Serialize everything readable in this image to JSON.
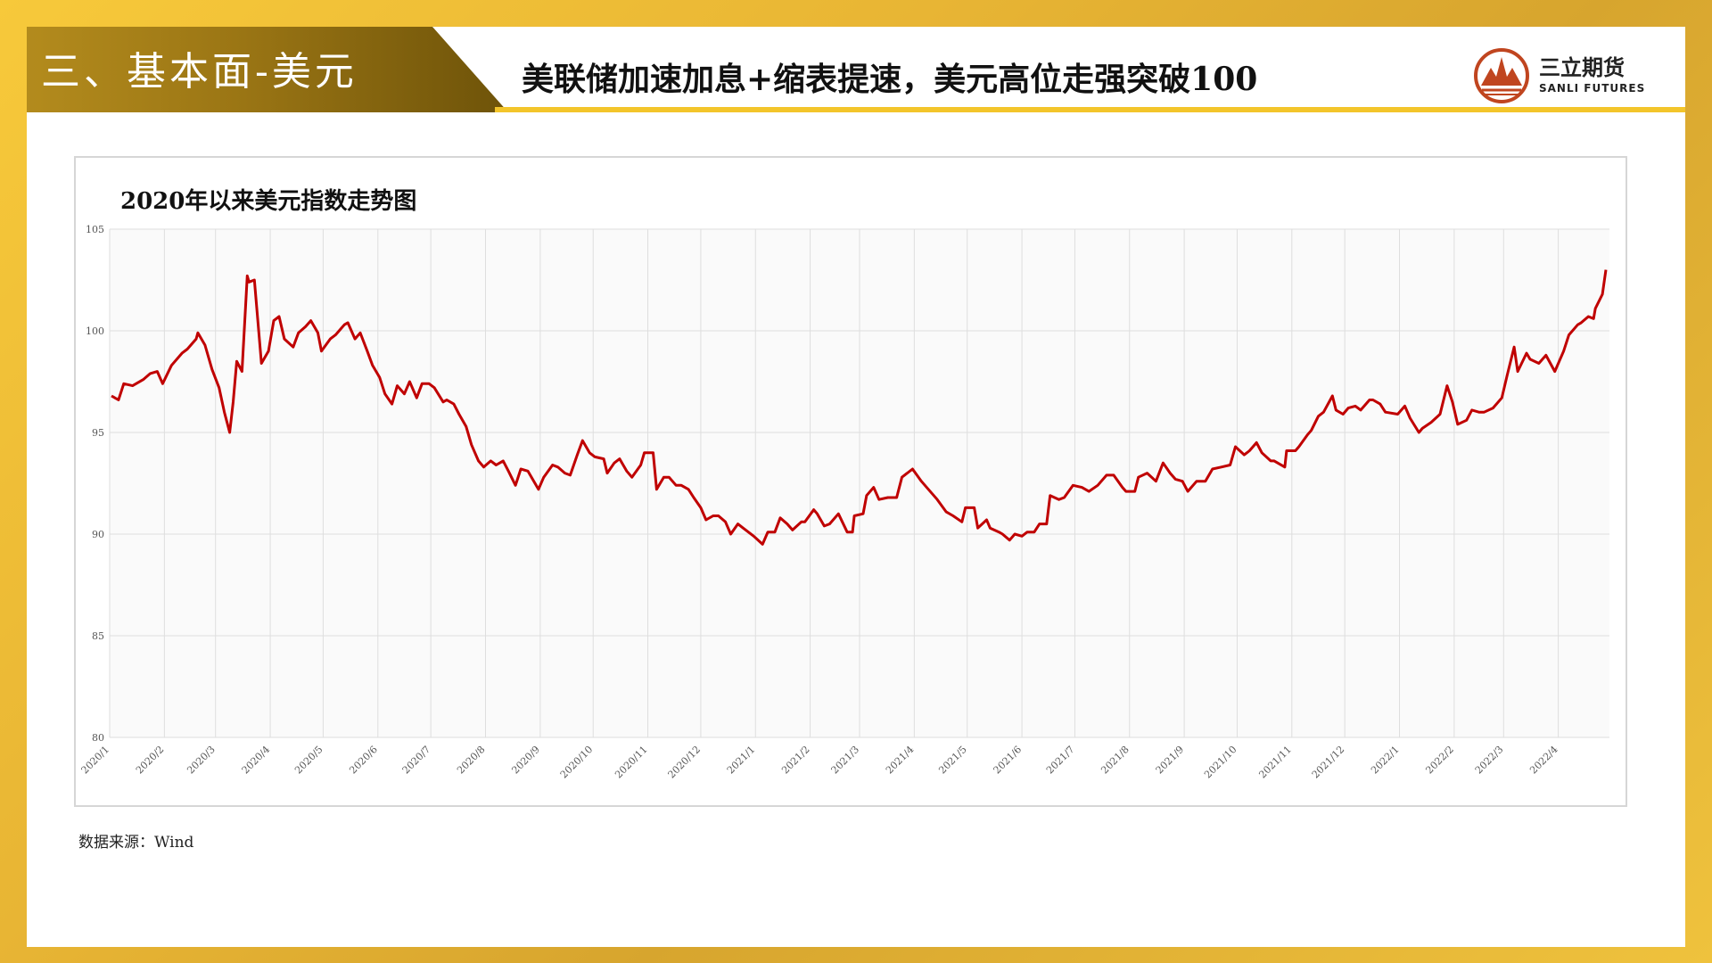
{
  "header": {
    "section_title": "三、基本面-美元",
    "headline": "美联储加速加息+缩表提速，美元高位走强突破100"
  },
  "logo": {
    "name_cn": "三立期货",
    "name_en": "SANLI FUTURES"
  },
  "colors": {
    "accent_gold": "#f3c52a",
    "line_red": "#c00000"
  },
  "footer": {
    "source": "数据来源：Wind"
  },
  "chart_data": {
    "type": "line",
    "title": "2020年以来美元指数走势图",
    "xlabel": "",
    "ylabel": "",
    "ylim": [
      80,
      105
    ],
    "yticks": [
      80,
      85,
      90,
      95,
      100,
      105
    ],
    "grid": true,
    "x_start": "2020-01-01",
    "x_end": "2022-04-30",
    "x_ticks": [
      "2020/1",
      "2020/2",
      "2020/3",
      "2020/4",
      "2020/5",
      "2020/6",
      "2020/7",
      "2020/8",
      "2020/9",
      "2020/10",
      "2020/11",
      "2020/12",
      "2021/1",
      "2021/2",
      "2021/3",
      "2021/4",
      "2021/5",
      "2021/6",
      "2021/7",
      "2021/8",
      "2021/9",
      "2021/10",
      "2021/11",
      "2021/12",
      "2022/1",
      "2022/2",
      "2022/3",
      "2022/4"
    ],
    "series": [
      {
        "name": "",
        "color": "#c00000",
        "points": [
          [
            "2020-01-02",
            96.8
          ],
          [
            "2020-01-06",
            96.6
          ],
          [
            "2020-01-09",
            97.4
          ],
          [
            "2020-01-14",
            97.3
          ],
          [
            "2020-01-20",
            97.6
          ],
          [
            "2020-01-24",
            97.9
          ],
          [
            "2020-01-28",
            98.0
          ],
          [
            "2020-01-31",
            97.4
          ],
          [
            "2020-02-05",
            98.3
          ],
          [
            "2020-02-11",
            98.9
          ],
          [
            "2020-02-14",
            99.1
          ],
          [
            "2020-02-19",
            99.6
          ],
          [
            "2020-02-20",
            99.9
          ],
          [
            "2020-02-24",
            99.3
          ],
          [
            "2020-02-28",
            98.1
          ],
          [
            "2020-03-03",
            97.2
          ],
          [
            "2020-03-06",
            96.0
          ],
          [
            "2020-03-09",
            95.0
          ],
          [
            "2020-03-11",
            96.5
          ],
          [
            "2020-03-13",
            98.5
          ],
          [
            "2020-03-16",
            98.0
          ],
          [
            "2020-03-19",
            102.7
          ],
          [
            "2020-03-20",
            102.4
          ],
          [
            "2020-03-23",
            102.5
          ],
          [
            "2020-03-27",
            98.4
          ],
          [
            "2020-03-31",
            99.0
          ],
          [
            "2020-04-03",
            100.5
          ],
          [
            "2020-04-06",
            100.7
          ],
          [
            "2020-04-09",
            99.6
          ],
          [
            "2020-04-14",
            99.2
          ],
          [
            "2020-04-17",
            99.9
          ],
          [
            "2020-04-21",
            100.2
          ],
          [
            "2020-04-24",
            100.5
          ],
          [
            "2020-04-28",
            99.9
          ],
          [
            "2020-04-30",
            99.0
          ],
          [
            "2020-05-05",
            99.6
          ],
          [
            "2020-05-08",
            99.8
          ],
          [
            "2020-05-13",
            100.3
          ],
          [
            "2020-05-15",
            100.4
          ],
          [
            "2020-05-19",
            99.6
          ],
          [
            "2020-05-22",
            99.9
          ],
          [
            "2020-05-26",
            99.0
          ],
          [
            "2020-05-29",
            98.3
          ],
          [
            "2020-06-02",
            97.7
          ],
          [
            "2020-06-05",
            96.9
          ],
          [
            "2020-06-09",
            96.4
          ],
          [
            "2020-06-12",
            97.3
          ],
          [
            "2020-06-16",
            96.9
          ],
          [
            "2020-06-19",
            97.5
          ],
          [
            "2020-06-23",
            96.7
          ],
          [
            "2020-06-26",
            97.4
          ],
          [
            "2020-06-30",
            97.4
          ],
          [
            "2020-07-03",
            97.2
          ],
          [
            "2020-07-08",
            96.5
          ],
          [
            "2020-07-10",
            96.6
          ],
          [
            "2020-07-14",
            96.4
          ],
          [
            "2020-07-17",
            95.9
          ],
          [
            "2020-07-21",
            95.3
          ],
          [
            "2020-07-24",
            94.4
          ],
          [
            "2020-07-28",
            93.6
          ],
          [
            "2020-07-31",
            93.3
          ],
          [
            "2020-08-04",
            93.6
          ],
          [
            "2020-08-07",
            93.4
          ],
          [
            "2020-08-11",
            93.6
          ],
          [
            "2020-08-14",
            93.1
          ],
          [
            "2020-08-18",
            92.4
          ],
          [
            "2020-08-21",
            93.2
          ],
          [
            "2020-08-25",
            93.1
          ],
          [
            "2020-08-31",
            92.2
          ],
          [
            "2020-09-03",
            92.8
          ],
          [
            "2020-09-08",
            93.4
          ],
          [
            "2020-09-11",
            93.3
          ],
          [
            "2020-09-15",
            93.0
          ],
          [
            "2020-09-18",
            92.9
          ],
          [
            "2020-09-22",
            93.9
          ],
          [
            "2020-09-25",
            94.6
          ],
          [
            "2020-09-29",
            94.0
          ],
          [
            "2020-10-02",
            93.8
          ],
          [
            "2020-10-07",
            93.7
          ],
          [
            "2020-10-09",
            93.0
          ],
          [
            "2020-10-13",
            93.5
          ],
          [
            "2020-10-16",
            93.7
          ],
          [
            "2020-10-20",
            93.1
          ],
          [
            "2020-10-23",
            92.8
          ],
          [
            "2020-10-28",
            93.4
          ],
          [
            "2020-10-30",
            94.0
          ],
          [
            "2020-11-04",
            94.0
          ],
          [
            "2020-11-06",
            92.2
          ],
          [
            "2020-11-10",
            92.8
          ],
          [
            "2020-11-13",
            92.8
          ],
          [
            "2020-11-17",
            92.4
          ],
          [
            "2020-11-20",
            92.4
          ],
          [
            "2020-11-24",
            92.2
          ],
          [
            "2020-11-27",
            91.8
          ],
          [
            "2020-12-01",
            91.3
          ],
          [
            "2020-12-04",
            90.7
          ],
          [
            "2020-12-08",
            90.9
          ],
          [
            "2020-12-11",
            90.9
          ],
          [
            "2020-12-15",
            90.6
          ],
          [
            "2020-12-18",
            90.0
          ],
          [
            "2020-12-22",
            90.5
          ],
          [
            "2020-12-25",
            90.3
          ],
          [
            "2020-12-31",
            89.9
          ],
          [
            "2021-01-05",
            89.5
          ],
          [
            "2021-01-08",
            90.1
          ],
          [
            "2021-01-12",
            90.1
          ],
          [
            "2021-01-15",
            90.8
          ],
          [
            "2021-01-19",
            90.5
          ],
          [
            "2021-01-22",
            90.2
          ],
          [
            "2021-01-27",
            90.6
          ],
          [
            "2021-01-29",
            90.6
          ],
          [
            "2021-02-03",
            91.2
          ],
          [
            "2021-02-05",
            91.0
          ],
          [
            "2021-02-09",
            90.4
          ],
          [
            "2021-02-12",
            90.5
          ],
          [
            "2021-02-17",
            91.0
          ],
          [
            "2021-02-22",
            90.1
          ],
          [
            "2021-02-25",
            90.1
          ],
          [
            "2021-02-26",
            90.9
          ],
          [
            "2021-03-03",
            91.0
          ],
          [
            "2021-03-05",
            91.9
          ],
          [
            "2021-03-09",
            92.3
          ],
          [
            "2021-03-12",
            91.7
          ],
          [
            "2021-03-17",
            91.8
          ],
          [
            "2021-03-22",
            91.8
          ],
          [
            "2021-03-25",
            92.8
          ],
          [
            "2021-03-31",
            93.2
          ],
          [
            "2021-04-05",
            92.6
          ],
          [
            "2021-04-09",
            92.2
          ],
          [
            "2021-04-14",
            91.7
          ],
          [
            "2021-04-19",
            91.1
          ],
          [
            "2021-04-23",
            90.9
          ],
          [
            "2021-04-28",
            90.6
          ],
          [
            "2021-04-30",
            91.3
          ],
          [
            "2021-05-05",
            91.3
          ],
          [
            "2021-05-07",
            90.3
          ],
          [
            "2021-05-12",
            90.7
          ],
          [
            "2021-05-14",
            90.3
          ],
          [
            "2021-05-19",
            90.1
          ],
          [
            "2021-05-21",
            90.0
          ],
          [
            "2021-05-25",
            89.7
          ],
          [
            "2021-05-28",
            90.0
          ],
          [
            "2021-06-01",
            89.9
          ],
          [
            "2021-06-04",
            90.1
          ],
          [
            "2021-06-08",
            90.1
          ],
          [
            "2021-06-11",
            90.5
          ],
          [
            "2021-06-15",
            90.5
          ],
          [
            "2021-06-17",
            91.9
          ],
          [
            "2021-06-22",
            91.7
          ],
          [
            "2021-06-25",
            91.8
          ],
          [
            "2021-06-30",
            92.4
          ],
          [
            "2021-07-05",
            92.3
          ],
          [
            "2021-07-09",
            92.1
          ],
          [
            "2021-07-14",
            92.4
          ],
          [
            "2021-07-19",
            92.9
          ],
          [
            "2021-07-23",
            92.9
          ],
          [
            "2021-07-28",
            92.3
          ],
          [
            "2021-07-30",
            92.1
          ],
          [
            "2021-08-04",
            92.1
          ],
          [
            "2021-08-06",
            92.8
          ],
          [
            "2021-08-11",
            93.0
          ],
          [
            "2021-08-16",
            92.6
          ],
          [
            "2021-08-20",
            93.5
          ],
          [
            "2021-08-24",
            93.0
          ],
          [
            "2021-08-27",
            92.7
          ],
          [
            "2021-08-31",
            92.6
          ],
          [
            "2021-09-03",
            92.1
          ],
          [
            "2021-09-08",
            92.6
          ],
          [
            "2021-09-13",
            92.6
          ],
          [
            "2021-09-17",
            93.2
          ],
          [
            "2021-09-22",
            93.3
          ],
          [
            "2021-09-27",
            93.4
          ],
          [
            "2021-09-30",
            94.3
          ],
          [
            "2021-10-05",
            93.9
          ],
          [
            "2021-10-08",
            94.1
          ],
          [
            "2021-10-12",
            94.5
          ],
          [
            "2021-10-15",
            94.0
          ],
          [
            "2021-10-20",
            93.6
          ],
          [
            "2021-10-22",
            93.6
          ],
          [
            "2021-10-28",
            93.3
          ],
          [
            "2021-10-29",
            94.1
          ],
          [
            "2021-11-03",
            94.1
          ],
          [
            "2021-11-05",
            94.3
          ],
          [
            "2021-11-10",
            94.9
          ],
          [
            "2021-11-12",
            95.1
          ],
          [
            "2021-11-16",
            95.8
          ],
          [
            "2021-11-19",
            96.0
          ],
          [
            "2021-11-24",
            96.8
          ],
          [
            "2021-11-26",
            96.1
          ],
          [
            "2021-11-30",
            95.9
          ],
          [
            "2021-12-03",
            96.2
          ],
          [
            "2021-12-07",
            96.3
          ],
          [
            "2021-12-10",
            96.1
          ],
          [
            "2021-12-15",
            96.6
          ],
          [
            "2021-12-17",
            96.6
          ],
          [
            "2021-12-21",
            96.4
          ],
          [
            "2021-12-24",
            96.0
          ],
          [
            "2021-12-31",
            95.9
          ],
          [
            "2022-01-04",
            96.3
          ],
          [
            "2022-01-07",
            95.7
          ],
          [
            "2022-01-12",
            95.0
          ],
          [
            "2022-01-14",
            95.2
          ],
          [
            "2022-01-19",
            95.5
          ],
          [
            "2022-01-24",
            95.9
          ],
          [
            "2022-01-28",
            97.3
          ],
          [
            "2022-01-31",
            96.5
          ],
          [
            "2022-02-03",
            95.4
          ],
          [
            "2022-02-08",
            95.6
          ],
          [
            "2022-02-11",
            96.1
          ],
          [
            "2022-02-15",
            96.0
          ],
          [
            "2022-02-18",
            96.0
          ],
          [
            "2022-02-23",
            96.2
          ],
          [
            "2022-02-28",
            96.7
          ],
          [
            "2022-03-03",
            97.8
          ],
          [
            "2022-03-07",
            99.2
          ],
          [
            "2022-03-09",
            98.0
          ],
          [
            "2022-03-14",
            98.9
          ],
          [
            "2022-03-16",
            98.6
          ],
          [
            "2022-03-21",
            98.4
          ],
          [
            "2022-03-25",
            98.8
          ],
          [
            "2022-03-30",
            98.0
          ],
          [
            "2022-04-04",
            99.0
          ],
          [
            "2022-04-07",
            99.8
          ],
          [
            "2022-04-12",
            100.3
          ],
          [
            "2022-04-14",
            100.4
          ],
          [
            "2022-04-18",
            100.7
          ],
          [
            "2022-04-21",
            100.6
          ],
          [
            "2022-04-22",
            101.1
          ],
          [
            "2022-04-26",
            101.8
          ],
          [
            "2022-04-28",
            103.0
          ]
        ]
      }
    ]
  }
}
